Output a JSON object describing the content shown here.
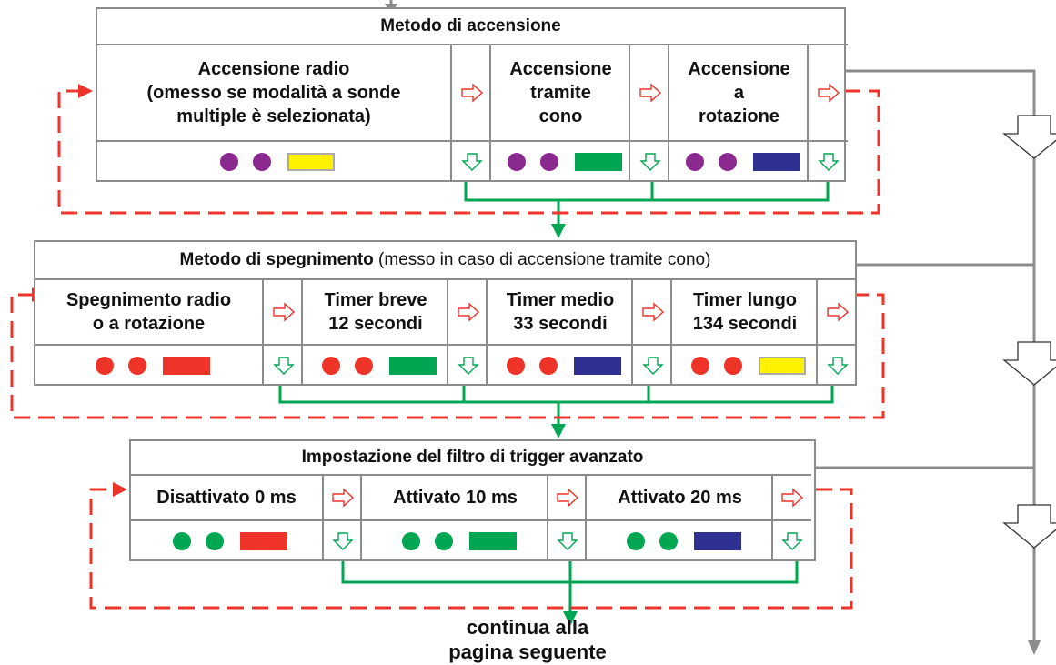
{
  "colors": {
    "purple": "#8a2a90",
    "red": "#ee3329",
    "green": "#00a651",
    "blue": "#2e3192",
    "yellow": "#fff200",
    "flow_green": "#00a651",
    "loop_red": "#ee3329",
    "border_gray": "#8c8c8c"
  },
  "sections": [
    {
      "title_bold": "Metodo di accensione",
      "title_note": "",
      "options": [
        {
          "label": "Accensione radio\n(omesso se modalità a sonde\nmultiple è selezionata)",
          "dots": "purple",
          "bar": "yellow"
        },
        {
          "label": "Accensione\ntramite\ncono",
          "dots": "purple",
          "bar": "green"
        },
        {
          "label": "Accensione\na\nrotazione",
          "dots": "purple",
          "bar": "blue"
        }
      ]
    },
    {
      "title_bold": "Metodo di spegnimento",
      "title_note": " (messo in caso di accensione tramite cono)",
      "options": [
        {
          "label": "Spegnimento radio\no a rotazione",
          "dots": "red",
          "bar": "red"
        },
        {
          "label": "Timer breve\n12 secondi",
          "dots": "red",
          "bar": "green"
        },
        {
          "label": "Timer medio\n33 secondi",
          "dots": "red",
          "bar": "blue"
        },
        {
          "label": "Timer lungo\n134 secondi",
          "dots": "red",
          "bar": "yellow"
        }
      ]
    },
    {
      "title_bold": "Impostazione del filtro di trigger avanzato",
      "title_note": "",
      "options": [
        {
          "label": "Disattivato 0 ms",
          "dots": "green",
          "bar": "red"
        },
        {
          "label": "Attivato 10 ms",
          "dots": "green",
          "bar": "green"
        },
        {
          "label": "Attivato 20 ms",
          "dots": "green",
          "bar": "blue"
        }
      ]
    }
  ],
  "footer": "continua alla\npagina seguente",
  "icons": {
    "right": "outline-right-arrow-icon",
    "down": "outline-down-arrow-icon",
    "skip": "large-outline-down-arrow-icon"
  }
}
